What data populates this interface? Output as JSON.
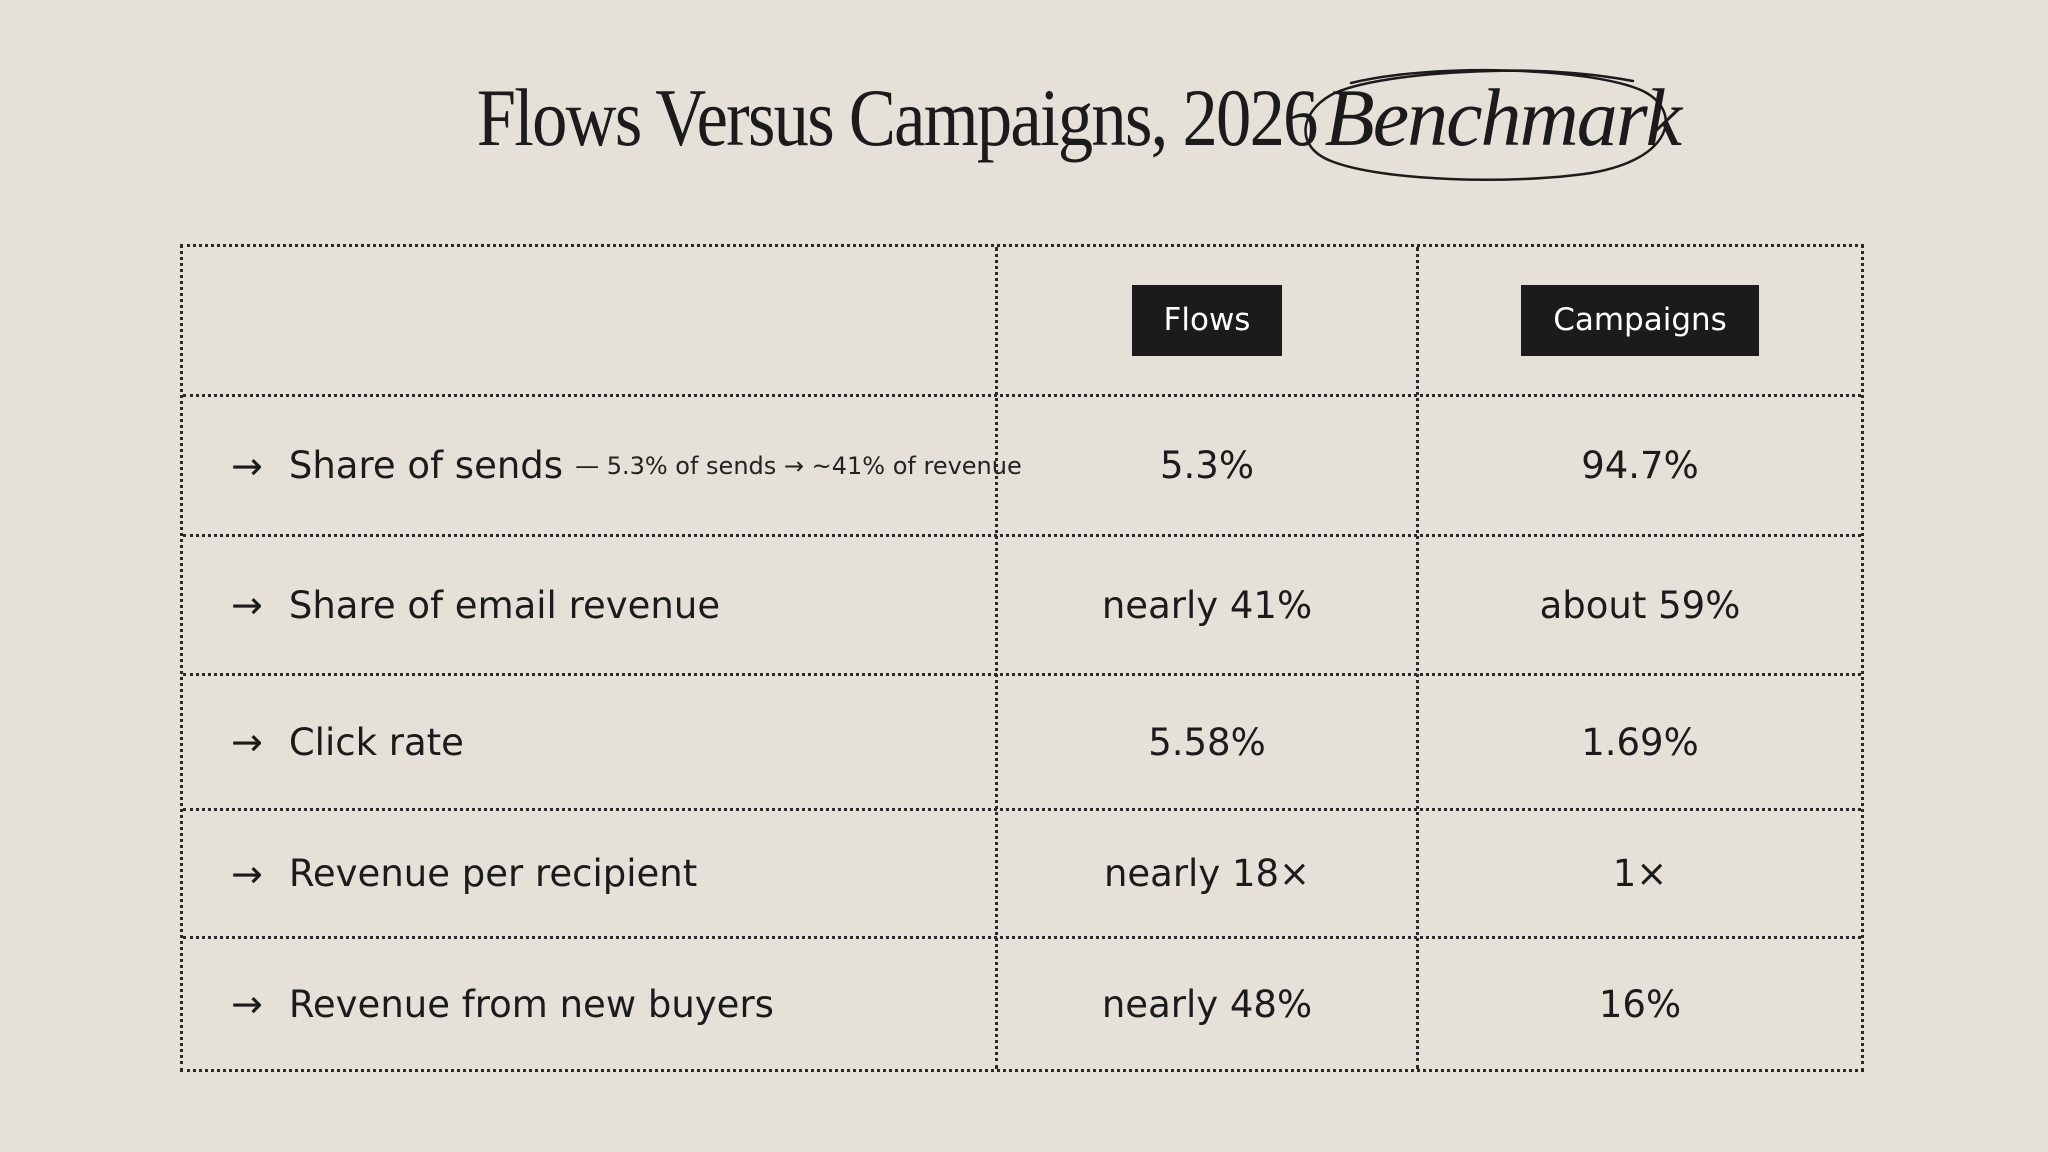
{
  "title": {
    "main": "Flows Versus Campaigns, 2026",
    "accent": "Benchmark"
  },
  "chart_data": {
    "type": "table",
    "columns": [
      "Flows",
      "Campaigns"
    ],
    "rows": [
      {
        "label": "Share of sends",
        "note": "— 5.3% of sends → ~41% of revenue",
        "flows": "5.3%",
        "campaigns": "94.7%"
      },
      {
        "label": "Share of email revenue",
        "note": "",
        "flows": "nearly 41%",
        "campaigns": "about 59%"
      },
      {
        "label": "Click rate",
        "note": "",
        "flows": "5.58%",
        "campaigns": "1.69%"
      },
      {
        "label": "Revenue per recipient",
        "note": "",
        "flows": "nearly 18×",
        "campaigns": "1×"
      },
      {
        "label": "Revenue from new buyers",
        "note": "",
        "flows": "nearly 48%",
        "campaigns": "16%"
      }
    ]
  },
  "icons": {
    "row_marker": "arrow-right-icon"
  },
  "colors": {
    "background": "#e5e1d9",
    "text": "#1b1b1b",
    "header_fill": "#1b1b1b",
    "header_text": "#ffffff"
  }
}
